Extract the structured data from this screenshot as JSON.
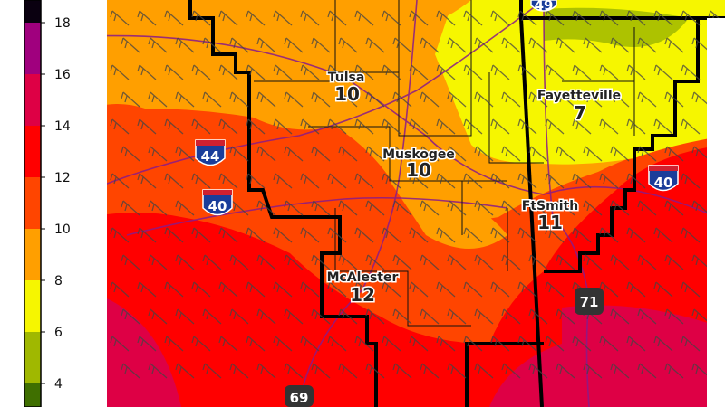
{
  "colorbar": {
    "ticks": [
      "4",
      "6",
      "8",
      "10",
      "12",
      "14",
      "16",
      "18"
    ],
    "bands": [
      {
        "from": 2,
        "to": 4,
        "color": "#3f6f00"
      },
      {
        "from": 4,
        "to": 6,
        "color": "#a0b800"
      },
      {
        "from": 6,
        "to": 8,
        "color": "#f6f600"
      },
      {
        "from": 8,
        "to": 10,
        "color": "#ff9f00"
      },
      {
        "from": 10,
        "to": 12,
        "color": "#ff4500"
      },
      {
        "from": 12,
        "to": 14,
        "color": "#ff0000"
      },
      {
        "from": 14,
        "to": 16,
        "color": "#de0045"
      },
      {
        "from": 16,
        "to": 18,
        "color": "#a0007e"
      },
      {
        "from": 18,
        "to": 20,
        "color": "#0a0010"
      }
    ]
  },
  "cities": [
    {
      "name": "Tulsa",
      "value": "10"
    },
    {
      "name": "Muskogee",
      "value": "10"
    },
    {
      "name": "Fayetteville",
      "value": "7"
    },
    {
      "name": "FtSmith",
      "value": "11"
    },
    {
      "name": "McAlester",
      "value": "12"
    }
  ],
  "shields": [
    {
      "type": "interstate",
      "number": "44"
    },
    {
      "type": "interstate",
      "number": "40"
    },
    {
      "type": "interstate",
      "number": "40"
    },
    {
      "type": "interstate",
      "number": "49"
    },
    {
      "type": "us-highway",
      "number": "71"
    },
    {
      "type": "us-highway",
      "number": "69"
    }
  ],
  "overlay": {
    "wind_barbs": true,
    "county_borders": true,
    "roads_color": "#8a1a8a"
  }
}
